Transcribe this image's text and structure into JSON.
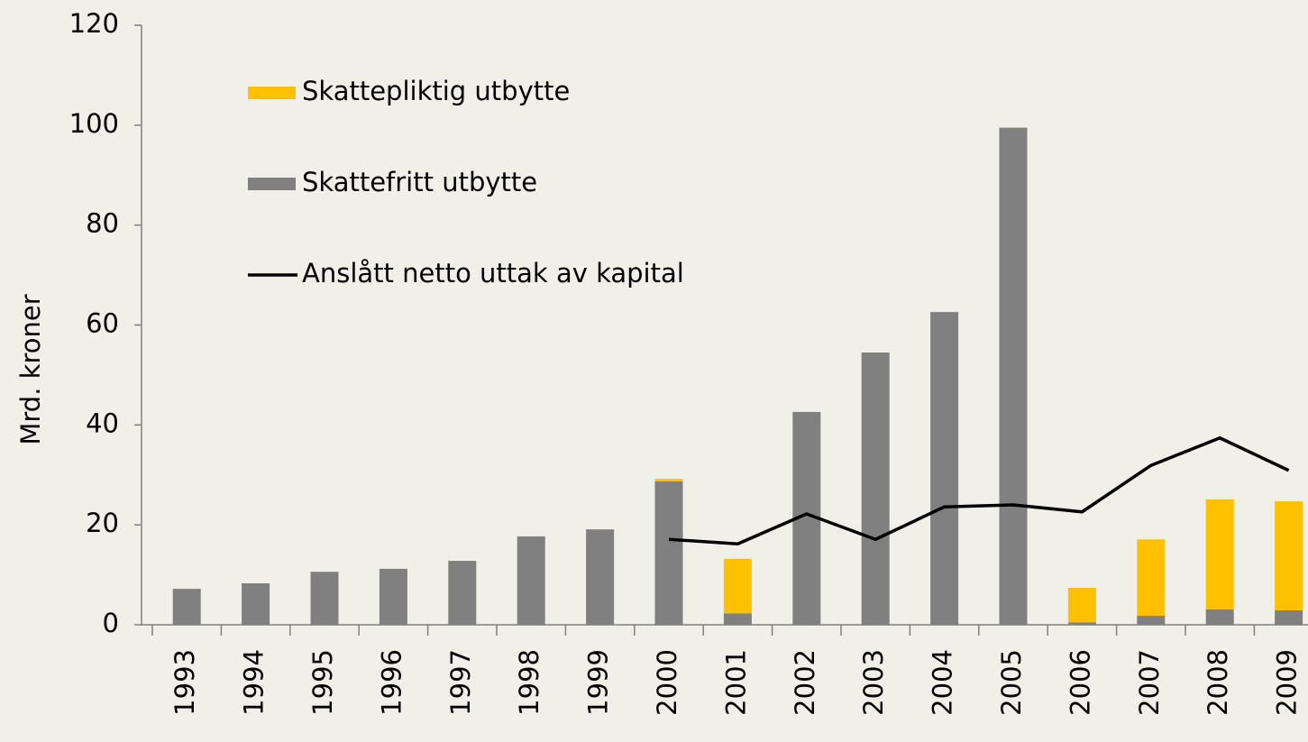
{
  "chart_data": {
    "type": "bar",
    "y_label": "Mrd. kroner",
    "categories": [
      "1993",
      "1994",
      "1995",
      "1996",
      "1997",
      "1998",
      "1999",
      "2000",
      "2001",
      "2002",
      "2003",
      "2004",
      "2005",
      "2006",
      "2007",
      "2008",
      "2009"
    ],
    "series": [
      {
        "name": "Skattepliktig utbytte",
        "type": "bar",
        "color": "#ffc000",
        "values": [
          null,
          null,
          null,
          null,
          null,
          null,
          null,
          0.5,
          10.9,
          null,
          null,
          null,
          null,
          6.9,
          15.3,
          22.0,
          21.8
        ]
      },
      {
        "name": "Skattefritt utbytte",
        "type": "bar",
        "color": "#808080",
        "values": [
          7.2,
          8.3,
          10.6,
          11.2,
          12.8,
          17.7,
          19.1,
          28.7,
          2.3,
          42.6,
          54.5,
          62.6,
          99.5,
          0.5,
          1.8,
          3.1,
          2.9
        ]
      },
      {
        "name": "Anslått netto uttak av kapital",
        "type": "line",
        "color": "#000000",
        "values": [
          null,
          null,
          null,
          null,
          null,
          null,
          null,
          17.1,
          16.2,
          22.2,
          17.1,
          23.6,
          24.0,
          22.6,
          31.9,
          37.4,
          30.9
        ]
      }
    ],
    "ylim": [
      0,
      120
    ],
    "yticks": [
      0,
      20,
      40,
      60,
      80,
      100,
      120
    ],
    "stacked": true
  }
}
